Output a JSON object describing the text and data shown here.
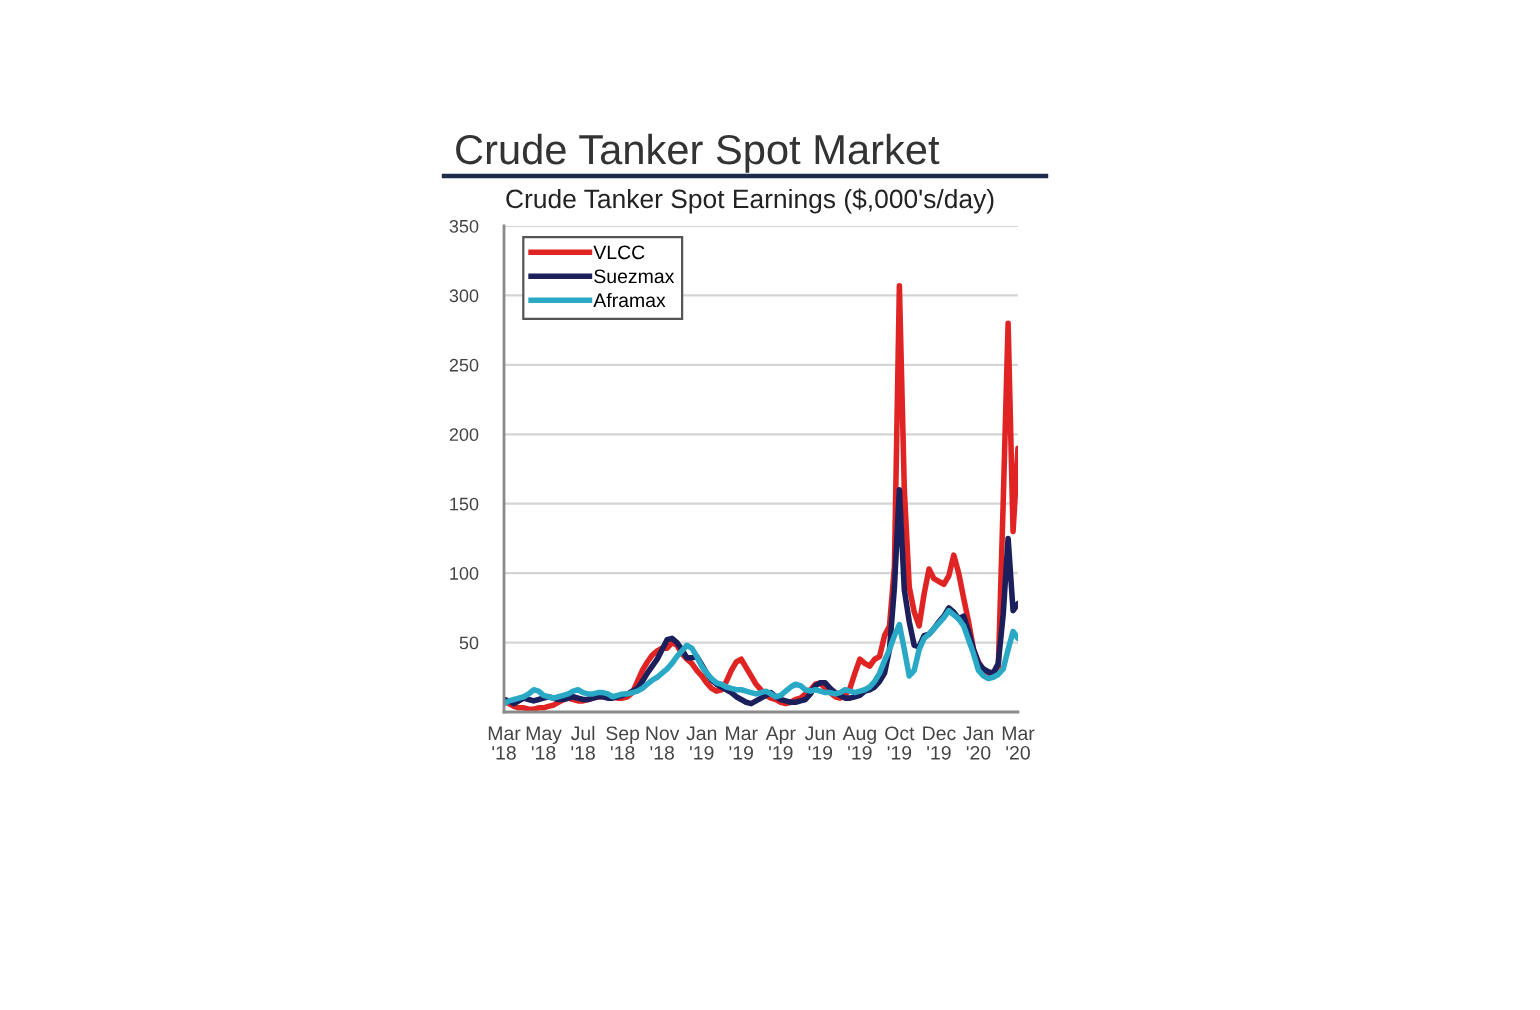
{
  "chart_data": {
    "type": "line",
    "title": "Crude Tanker Spot Market",
    "subtitle": "Crude Tanker Spot Earnings ($,000's/day)",
    "categories": [
      "Mar '18",
      null,
      null,
      null,
      null,
      null,
      null,
      null,
      "May '18",
      null,
      null,
      null,
      null,
      null,
      null,
      null,
      "Jul '18",
      null,
      null,
      null,
      null,
      null,
      null,
      null,
      "Sep '18",
      null,
      null,
      null,
      null,
      null,
      null,
      null,
      "Nov '18",
      null,
      null,
      null,
      null,
      null,
      null,
      null,
      "Jan '19",
      null,
      null,
      null,
      null,
      null,
      null,
      null,
      "Mar '19",
      null,
      null,
      null,
      null,
      null,
      null,
      null,
      "Apr '19",
      null,
      null,
      null,
      null,
      null,
      null,
      null,
      "Jun '19",
      null,
      null,
      null,
      null,
      null,
      null,
      null,
      "Aug '19",
      null,
      null,
      null,
      null,
      null,
      null,
      null,
      "Oct '19",
      null,
      null,
      null,
      null,
      null,
      null,
      null,
      "Dec '19",
      null,
      null,
      null,
      null,
      null,
      null,
      null,
      "Jan '20",
      null,
      null,
      null,
      null,
      null,
      null,
      null,
      "Mar '20"
    ],
    "series": [
      {
        "name": "VLCC",
        "color": "#e02424",
        "values": [
          8,
          6,
          4,
          3,
          3,
          2,
          2,
          3,
          3,
          4,
          5,
          7,
          9,
          10,
          9,
          8,
          8,
          9,
          10,
          11,
          11,
          12,
          11,
          10,
          10,
          11,
          14,
          22,
          30,
          36,
          41,
          44,
          46,
          46,
          50,
          48,
          42,
          38,
          35,
          30,
          26,
          21,
          17,
          15,
          16,
          22,
          30,
          36,
          38,
          32,
          26,
          20,
          16,
          12,
          10,
          9,
          7,
          6,
          7,
          9,
          10,
          13,
          16,
          20,
          21,
          17,
          14,
          11,
          10,
          12,
          17,
          28,
          38,
          35,
          33,
          38,
          40,
          55,
          62,
          105,
          307,
          160,
          90,
          72,
          62,
          85,
          103,
          96,
          94,
          92,
          98,
          113,
          100,
          82,
          65,
          45,
          36,
          30,
          28,
          27,
          30,
          150,
          280,
          130,
          190
        ]
      },
      {
        "name": "Suezmax",
        "color": "#1b1f5c",
        "values": [
          9,
          8,
          6,
          8,
          10,
          9,
          8,
          9,
          10,
          11,
          10,
          9,
          9,
          10,
          11,
          10,
          9,
          9,
          10,
          11,
          11,
          10,
          10,
          11,
          12,
          13,
          15,
          17,
          22,
          28,
          33,
          38,
          45,
          52,
          53,
          50,
          45,
          39,
          39,
          40,
          34,
          28,
          23,
          20,
          18,
          16,
          14,
          11,
          9,
          7,
          6,
          8,
          10,
          12,
          14,
          11,
          9,
          8,
          7,
          7,
          8,
          9,
          13,
          19,
          21,
          21,
          17,
          14,
          12,
          10,
          10,
          11,
          12,
          15,
          16,
          18,
          22,
          28,
          45,
          90,
          160,
          88,
          65,
          48,
          47,
          55,
          56,
          60,
          65,
          69,
          75,
          72,
          67,
          69,
          58,
          45,
          35,
          31,
          29,
          28,
          35,
          70,
          125,
          73,
          78
        ]
      },
      {
        "name": "Aframax",
        "color": "#2aa9c6",
        "values": [
          6,
          8,
          9,
          10,
          11,
          13,
          16,
          15,
          12,
          11,
          10,
          11,
          12,
          13,
          15,
          16,
          14,
          13,
          13,
          14,
          14,
          13,
          11,
          12,
          13,
          13,
          14,
          15,
          17,
          20,
          23,
          25,
          28,
          31,
          35,
          40,
          44,
          48,
          46,
          40,
          33,
          28,
          24,
          21,
          20,
          18,
          17,
          16,
          16,
          15,
          14,
          13,
          14,
          15,
          13,
          11,
          12,
          15,
          18,
          20,
          19,
          16,
          15,
          16,
          15,
          14,
          14,
          13,
          14,
          16,
          15,
          14,
          15,
          16,
          18,
          22,
          28,
          37,
          45,
          55,
          63,
          45,
          26,
          30,
          45,
          53,
          56,
          60,
          64,
          68,
          73,
          70,
          67,
          62,
          52,
          42,
          30,
          26,
          24,
          25,
          27,
          31,
          45,
          58,
          53
        ]
      }
    ],
    "ylim": [
      0,
      350
    ],
    "yticks": [
      50,
      100,
      150,
      200,
      250,
      300,
      350
    ],
    "grid": "y",
    "legend": "top left"
  }
}
